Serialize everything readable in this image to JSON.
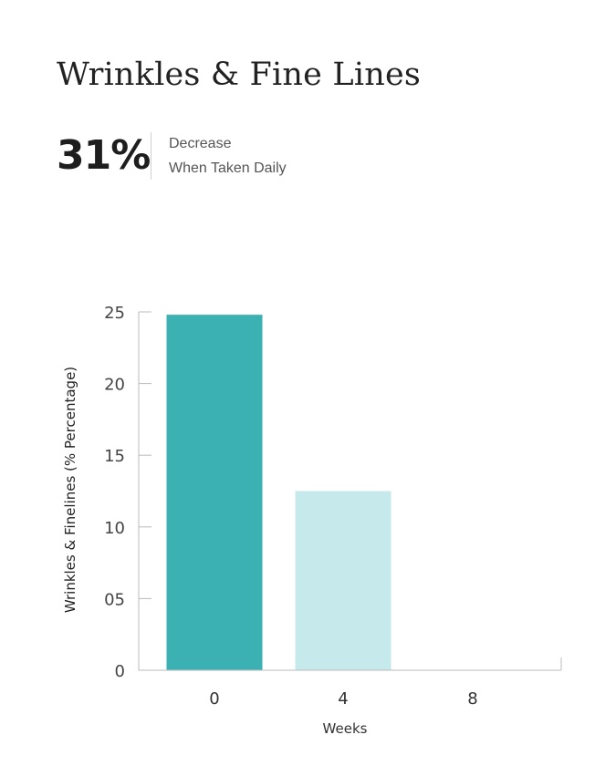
{
  "header": {
    "title": "Wrinkles & Fine Lines",
    "stat_value": "31%",
    "stat_line1": "Decrease",
    "stat_line2": "When Taken Daily"
  },
  "colors": {
    "bar_dark": "#3cb1b3",
    "bar_light": "#c6eaeb",
    "axis": "#bbbbbb"
  },
  "chart_data": {
    "type": "bar",
    "categories": [
      "0",
      "4",
      "8"
    ],
    "values": [
      24.8,
      12.5,
      0
    ],
    "bar_colors": [
      "#3cb1b3",
      "#c6eaeb",
      "#c6eaeb"
    ],
    "xlabel": "Weeks",
    "ylabel": "Wrinkles & Finelines (% Percentage)",
    "ylim": [
      0,
      25
    ],
    "yticks": [
      0,
      5,
      10,
      15,
      20,
      25
    ],
    "ytick_labels": [
      "0",
      "05",
      "10",
      "15",
      "20",
      "25"
    ],
    "grid": false
  }
}
